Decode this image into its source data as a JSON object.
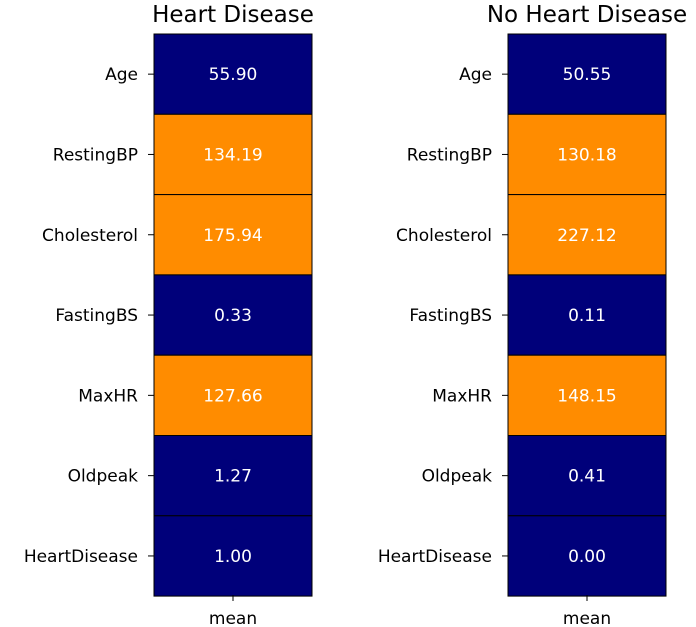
{
  "chart_data": [
    {
      "type": "heatmap",
      "title": "Heart Disease",
      "xlabel": "mean",
      "rows": [
        "Age",
        "RestingBP",
        "Cholesterol",
        "FastingBS",
        "MaxHR",
        "Oldpeak",
        "HeartDisease"
      ],
      "values": [
        "55.90",
        "134.19",
        "175.94",
        "0.33",
        "127.66",
        "1.27",
        "1.00"
      ],
      "colorscale": {
        "low": "#00007a",
        "high": "#ff8c00"
      }
    },
    {
      "type": "heatmap",
      "title": "No Heart Disease",
      "xlabel": "mean",
      "rows": [
        "Age",
        "RestingBP",
        "Cholesterol",
        "FastingBS",
        "MaxHR",
        "Oldpeak",
        "HeartDisease"
      ],
      "values": [
        "50.55",
        "130.18",
        "227.12",
        "0.11",
        "148.15",
        "0.41",
        "0.00"
      ],
      "colorscale": {
        "low": "#00007a",
        "high": "#ff8c00"
      }
    }
  ],
  "colors": {
    "cell_low": "#00007a",
    "cell_high": "#ff8c00",
    "cell_text": "#ffffff",
    "grid_line": "#000000"
  },
  "color_threshold": 100
}
